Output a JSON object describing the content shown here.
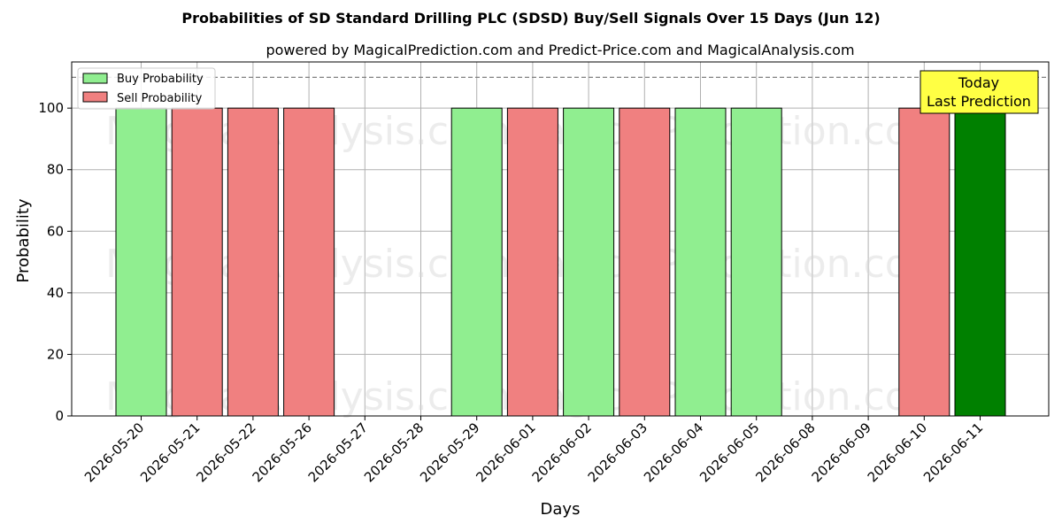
{
  "chart_data": {
    "type": "bar",
    "title": "Probabilities of SD Standard Drilling PLC (SDSD) Buy/Sell Signals Over 15 Days (Jun 12)",
    "subtitle": "powered by MagicalPrediction.com and Predict-Price.com and MagicalAnalysis.com",
    "xlabel": "Days",
    "ylabel": "Probability",
    "ylim": [
      0,
      115
    ],
    "yticks": [
      0,
      20,
      40,
      60,
      80,
      100
    ],
    "reference_line": 110,
    "grid": true,
    "legend_position": "top-left",
    "categories": [
      "2026-05-20",
      "2026-05-21",
      "2026-05-22",
      "2026-05-26",
      "2026-05-27",
      "2026-05-28",
      "2026-05-29",
      "2026-06-01",
      "2026-06-02",
      "2026-06-03",
      "2026-06-04",
      "2026-06-05",
      "2026-06-08",
      "2026-06-09",
      "2026-06-10",
      "2026-06-11"
    ],
    "series": [
      {
        "name": "Buy Probability",
        "color": "#90ee90",
        "values": [
          100,
          0,
          0,
          0,
          0,
          0,
          100,
          0,
          100,
          0,
          100,
          100,
          0,
          0,
          0,
          100
        ]
      },
      {
        "name": "Sell Probability",
        "color": "#f08080",
        "values": [
          0,
          100,
          100,
          100,
          0,
          0,
          0,
          100,
          0,
          100,
          0,
          0,
          0,
          0,
          100,
          0
        ]
      }
    ],
    "highlight": {
      "category": "2026-06-11",
      "color": "#008000"
    },
    "annotation": {
      "line1": "Today",
      "line2": "Last Prediction",
      "background": "#ffff44"
    },
    "watermarks": [
      "MagicalAnalysis.com",
      "MagicalPrediction.com"
    ]
  }
}
